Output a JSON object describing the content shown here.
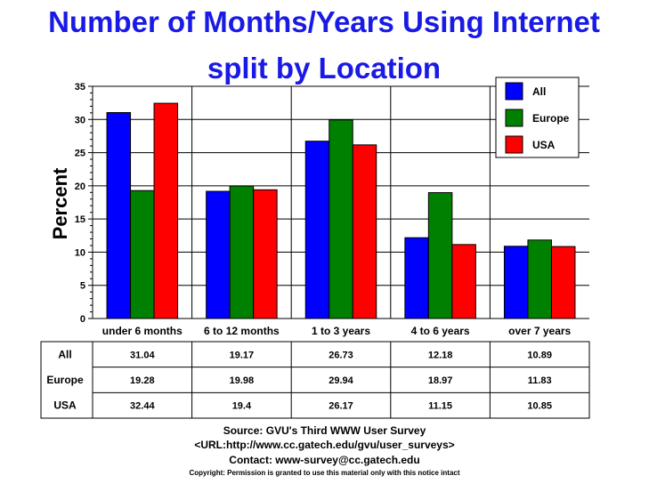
{
  "chart_data": {
    "type": "bar",
    "title": "Number of Months/Years Using Internet",
    "subtitle": "split by Location",
    "ylabel": "Percent",
    "xlabel": "",
    "ylim": [
      0,
      35
    ],
    "yticks": [
      0,
      5,
      10,
      15,
      20,
      25,
      30,
      35
    ],
    "categories": [
      "under 6 months",
      "6 to 12 months",
      "1 to 3 years",
      "4 to 6 years",
      "over 7 years"
    ],
    "series": [
      {
        "name": "All",
        "color": "#0000ff",
        "values": [
          31.04,
          19.17,
          26.73,
          12.18,
          10.89
        ]
      },
      {
        "name": "Europe",
        "color": "#008000",
        "values": [
          19.28,
          19.98,
          29.94,
          18.97,
          11.83
        ]
      },
      {
        "name": "USA",
        "color": "#ff0000",
        "values": [
          32.44,
          19.4,
          26.17,
          11.15,
          10.85
        ]
      }
    ],
    "legend_position": "top-right",
    "grid": true,
    "table": {
      "rows": [
        {
          "name": "All",
          "cells": [
            "31.04",
            "19.17",
            "26.73",
            "12.18",
            "10.89"
          ]
        },
        {
          "name": "Europe",
          "cells": [
            "19.28",
            "19.98",
            "29.94",
            "18.97",
            "11.83"
          ]
        },
        {
          "name": "USA",
          "cells": [
            "32.44",
            "19.4",
            "26.17",
            "11.15",
            "10.85"
          ]
        }
      ]
    }
  },
  "footer": {
    "source": "Source: GVU's Third WWW User Survey",
    "url": "<URL:http://www.cc.gatech.edu/gvu/user_surveys>",
    "contact": "Contact: www-survey@cc.gatech.edu",
    "copyright": "Copyright: Permission is granted to use this material only with this notice intact"
  }
}
